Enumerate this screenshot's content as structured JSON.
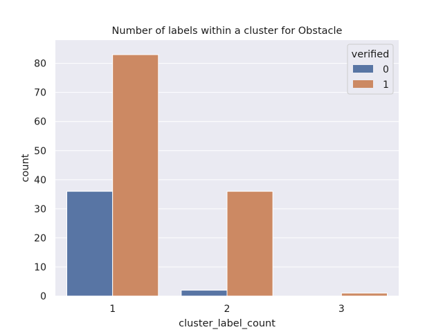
{
  "chart_data": {
    "type": "bar",
    "title": "Number of labels within a cluster for Obstacle",
    "xlabel": "cluster_label_count",
    "ylabel": "count",
    "categories": [
      "1",
      "2",
      "3"
    ],
    "ylim": [
      0,
      88
    ],
    "yticks": [
      0,
      10,
      20,
      30,
      40,
      50,
      60,
      70,
      80
    ],
    "grid": true,
    "legend": {
      "title": "verified",
      "placement": "top-right"
    },
    "series": [
      {
        "name": "0",
        "color": "#5875a4",
        "values": [
          36,
          2,
          0
        ]
      },
      {
        "name": "1",
        "color": "#cc8963",
        "values": [
          83,
          36,
          1
        ]
      }
    ]
  },
  "style": {
    "plot_background": "#eaeaf2",
    "grid_color": "#ffffff"
  }
}
